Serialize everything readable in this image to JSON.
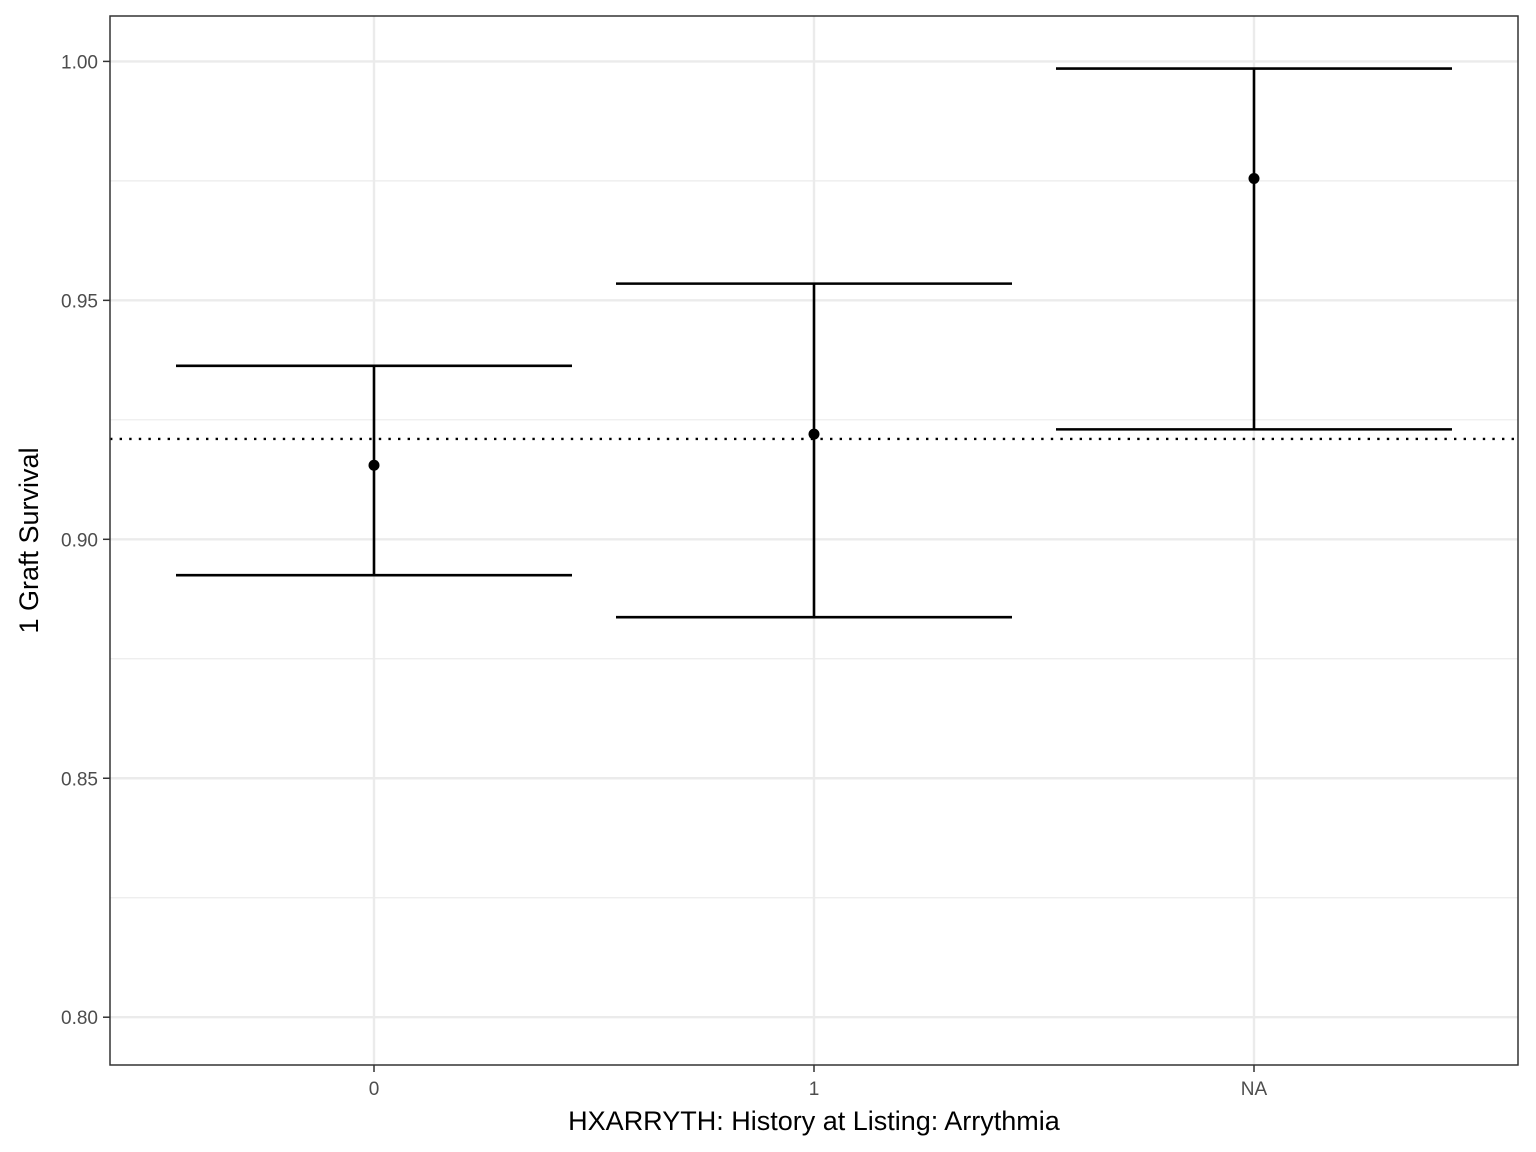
{
  "chart_data": {
    "type": "errorbar",
    "xlabel": "HXARRYTH: History at Listing: Arrythmia",
    "ylabel": "1 Graft Survival",
    "categories": [
      "0",
      "1",
      "NA"
    ],
    "estimate": [
      0.9155,
      0.922,
      0.9755
    ],
    "lower": [
      0.8925,
      0.8837,
      0.923
    ],
    "upper": [
      0.9363,
      0.9535,
      0.9985
    ],
    "reference_line": 0.921,
    "ylim": [
      0.79,
      1.0095
    ],
    "yticks": [
      0.8,
      0.85,
      0.9,
      0.95,
      1.0
    ],
    "ytick_labels": [
      "0.80",
      "0.85",
      "0.90",
      "0.95",
      "1.00"
    ],
    "grid": true,
    "colors": {
      "grid": "#ebebeb",
      "marks": "#000000",
      "panel_border": "#333333",
      "tick_text": "#4d4d4d"
    }
  }
}
